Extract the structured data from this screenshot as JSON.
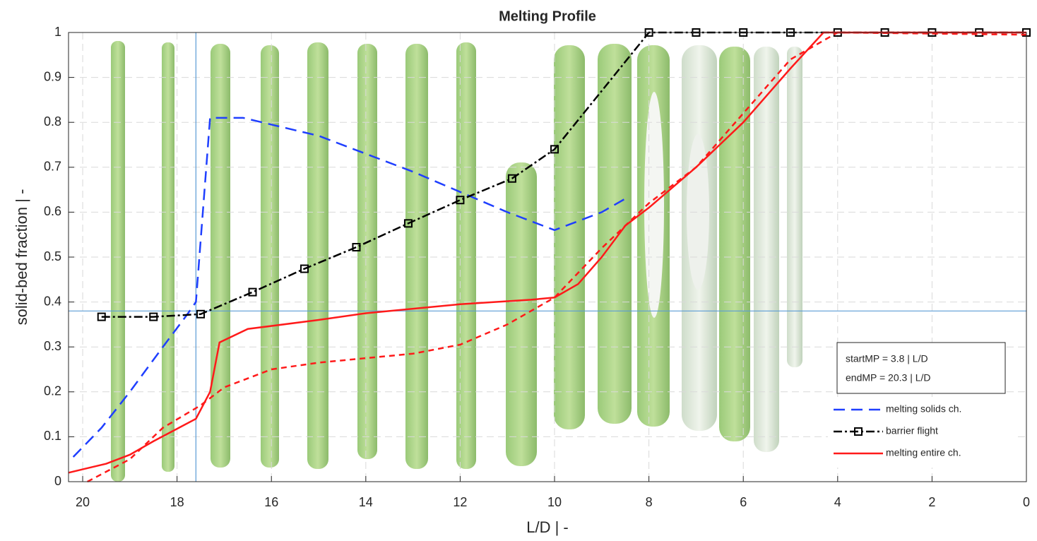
{
  "chart_data": {
    "type": "line",
    "title": "Melting Profile",
    "xlabel": "L/D | -",
    "ylabel": "solid-bed fraction | -",
    "xlim": [
      20.3,
      0
    ],
    "ylim": [
      0,
      1
    ],
    "xticks": [
      20,
      18,
      16,
      14,
      12,
      10,
      8,
      6,
      4,
      2,
      0
    ],
    "yticks": [
      0,
      0.1,
      0.2,
      0.3,
      0.4,
      0.5,
      0.6,
      0.7,
      0.8,
      0.9,
      1
    ],
    "grid": true,
    "legend": "lower right",
    "vlines": [
      17.6
    ],
    "hlines": [
      0.38
    ],
    "ref_color": "#5b9bd5",
    "annotation": [
      "startMP =  3.8 | L/D",
      "endMP  = 20.3 | L/D"
    ],
    "series": [
      {
        "name": "melting solids ch.",
        "color": "#1f3fff",
        "style": "dashed",
        "x": [
          20.2,
          19.6,
          19.0,
          18.3,
          17.8,
          17.6,
          17.3,
          16.6,
          15.0,
          13.0,
          11.0,
          10.0,
          9.0,
          8.5
        ],
        "values": [
          0.055,
          0.12,
          0.2,
          0.3,
          0.37,
          0.4,
          0.81,
          0.81,
          0.77,
          0.69,
          0.6,
          0.56,
          0.6,
          0.63
        ]
      },
      {
        "name": "barrier flight",
        "color": "#000000",
        "style": "dashdot",
        "marker": "square",
        "x": [
          19.6,
          18.5,
          17.5,
          16.4,
          15.3,
          14.2,
          13.1,
          12.0,
          10.9,
          10.0,
          8,
          7,
          6,
          5,
          4,
          3,
          2,
          1,
          0
        ],
        "values": [
          0.367,
          0.367,
          0.373,
          0.422,
          0.474,
          0.522,
          0.575,
          0.627,
          0.675,
          0.74,
          1,
          1,
          1,
          1,
          1,
          1,
          1,
          1,
          1
        ]
      },
      {
        "name": "melting entire ch.",
        "color": "#ff1a1a",
        "style": "solid",
        "x": [
          20.3,
          19.5,
          19.0,
          18.5,
          17.6,
          17.3,
          17.1,
          16.5,
          15.0,
          14.0,
          12.0,
          10.5,
          10.0,
          9.5,
          9.0,
          8.5,
          8.0,
          7.0,
          6.0,
          5.0,
          4.3,
          0
        ],
        "values": [
          0.02,
          0.04,
          0.06,
          0.09,
          0.14,
          0.2,
          0.31,
          0.34,
          0.36,
          0.375,
          0.395,
          0.405,
          0.41,
          0.44,
          0.5,
          0.57,
          0.61,
          0.7,
          0.8,
          0.92,
          1,
          1
        ]
      },
      {
        "color": "#ff1a1a",
        "style": "dashed2",
        "x": [
          19.9,
          19.0,
          18.3,
          17.5,
          17.0,
          16.0,
          15.0,
          14.0,
          13.0,
          12.0,
          11.0,
          10.0,
          9.0,
          8.0,
          7.0,
          6.0,
          5.0,
          4.0,
          0
        ],
        "values": [
          0,
          0.05,
          0.12,
          0.17,
          0.21,
          0.25,
          0.265,
          0.275,
          0.285,
          0.305,
          0.35,
          0.41,
          0.52,
          0.62,
          0.7,
          0.82,
          0.94,
          1,
          0.995
        ]
      }
    ]
  }
}
